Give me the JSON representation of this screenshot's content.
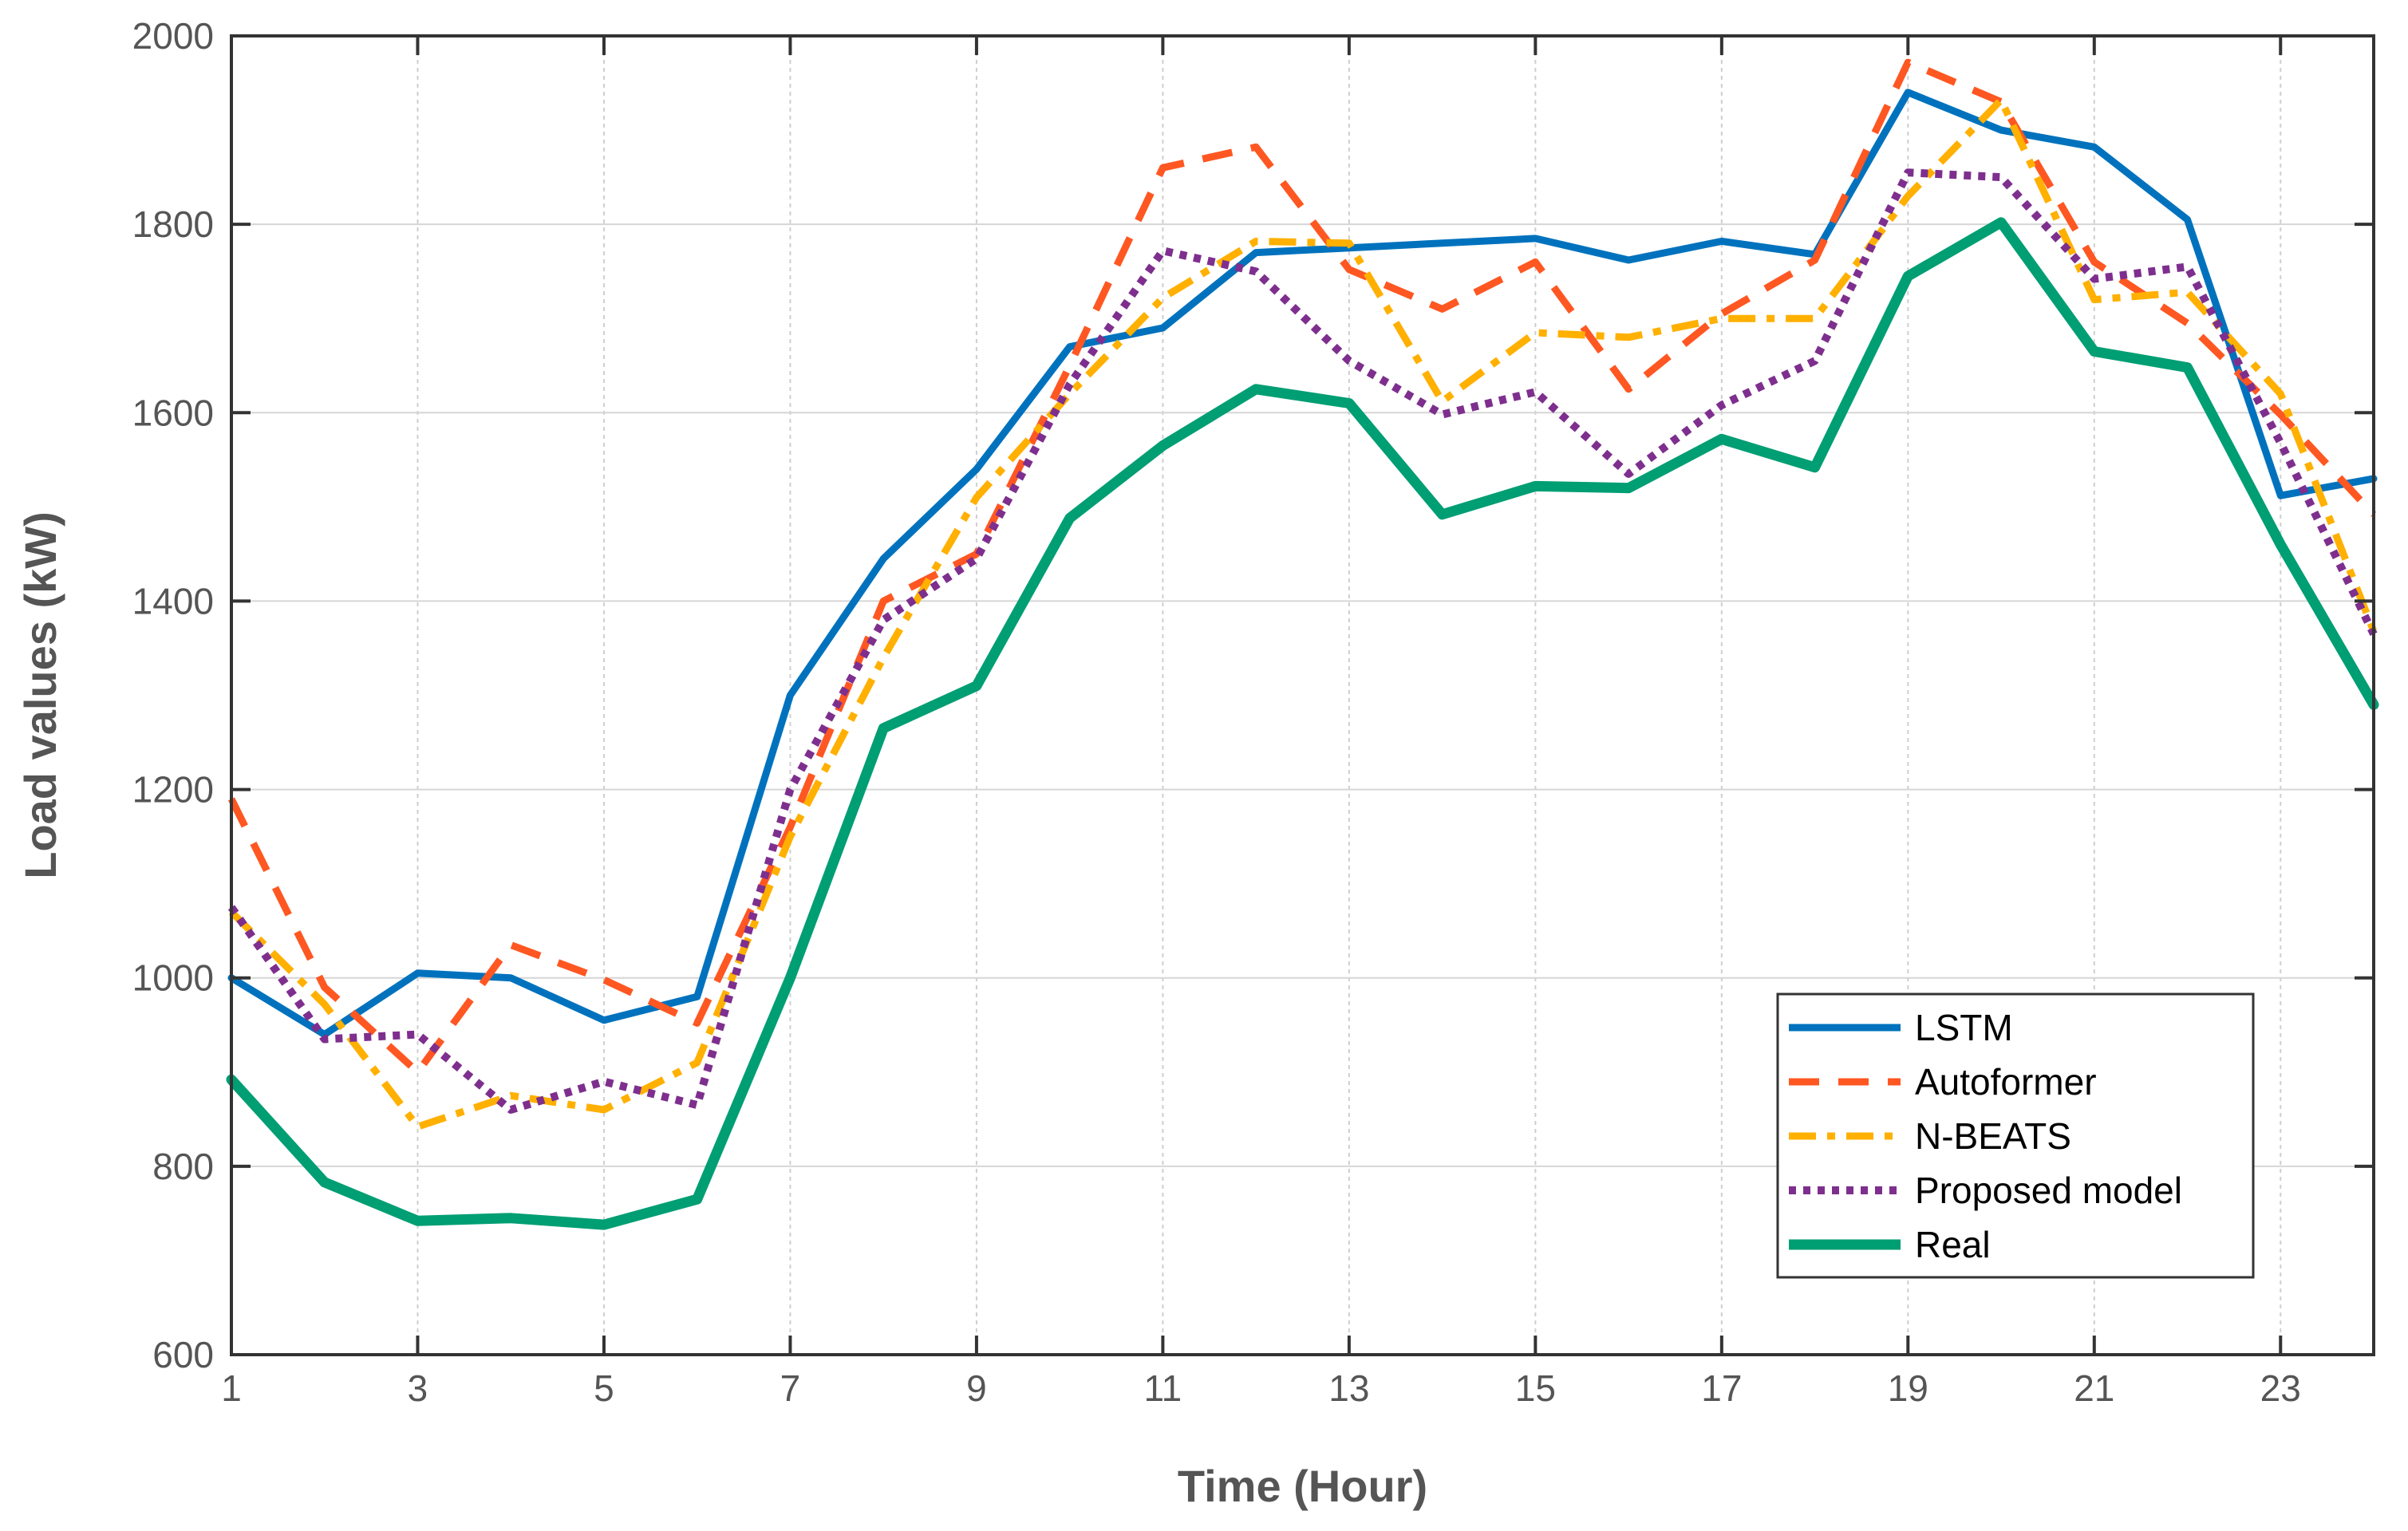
{
  "chart_data": {
    "type": "line",
    "title": "",
    "xlabel": "Time (Hour)",
    "ylabel": "Load values (kW)",
    "xlim": [
      1,
      24
    ],
    "ylim": [
      600,
      2000
    ],
    "x_ticks": [
      1,
      3,
      5,
      7,
      9,
      11,
      13,
      15,
      17,
      19,
      21,
      23
    ],
    "y_ticks": [
      600,
      800,
      1000,
      1200,
      1400,
      1600,
      1800,
      2000
    ],
    "grid": true,
    "legend_position": "lower-right",
    "x": [
      1,
      2,
      3,
      4,
      5,
      6,
      7,
      8,
      9,
      10,
      11,
      12,
      13,
      14,
      15,
      16,
      17,
      18,
      19,
      20,
      21,
      22,
      23,
      24
    ],
    "series": [
      {
        "name": "LSTM",
        "color": "#0072BD",
        "style": "solid",
        "values": [
          1000,
          940,
          1005,
          1000,
          955,
          980,
          1300,
          1445,
          1540,
          1670,
          1690,
          1770,
          1775,
          1780,
          1785,
          1762,
          1782,
          1768,
          1940,
          1900,
          1882,
          1805,
          1512,
          1530
        ]
      },
      {
        "name": "Autoformer",
        "color": "#FF5722",
        "style": "dashed",
        "values": [
          1190,
          990,
          900,
          1035,
          998,
          952,
          1160,
          1400,
          1450,
          1650,
          1860,
          1882,
          1752,
          1710,
          1760,
          1625,
          1705,
          1762,
          1972,
          1930,
          1760,
          1695,
          1598,
          1492
        ]
      },
      {
        "name": "N-BEATS",
        "color": "#FFB000",
        "style": "dashdot",
        "values": [
          1070,
          972,
          842,
          875,
          860,
          910,
          1150,
          1340,
          1510,
          1620,
          1722,
          1782,
          1780,
          1612,
          1685,
          1680,
          1700,
          1700,
          1830,
          1932,
          1720,
          1728,
          1620,
          1368
        ]
      },
      {
        "name": "Proposed model",
        "color": "#7E2F8E",
        "style": "dotted",
        "values": [
          1075,
          935,
          940,
          860,
          890,
          865,
          1200,
          1380,
          1445,
          1630,
          1772,
          1750,
          1655,
          1598,
          1622,
          1535,
          1608,
          1655,
          1855,
          1850,
          1742,
          1755,
          1568,
          1365
        ]
      },
      {
        "name": "Real",
        "color": "#009E73",
        "style": "solid",
        "values": [
          892,
          783,
          742,
          745,
          738,
          765,
          1000,
          1265,
          1310,
          1488,
          1565,
          1625,
          1610,
          1492,
          1522,
          1520,
          1572,
          1542,
          1745,
          1802,
          1665,
          1648,
          1460,
          1290
        ]
      }
    ]
  }
}
